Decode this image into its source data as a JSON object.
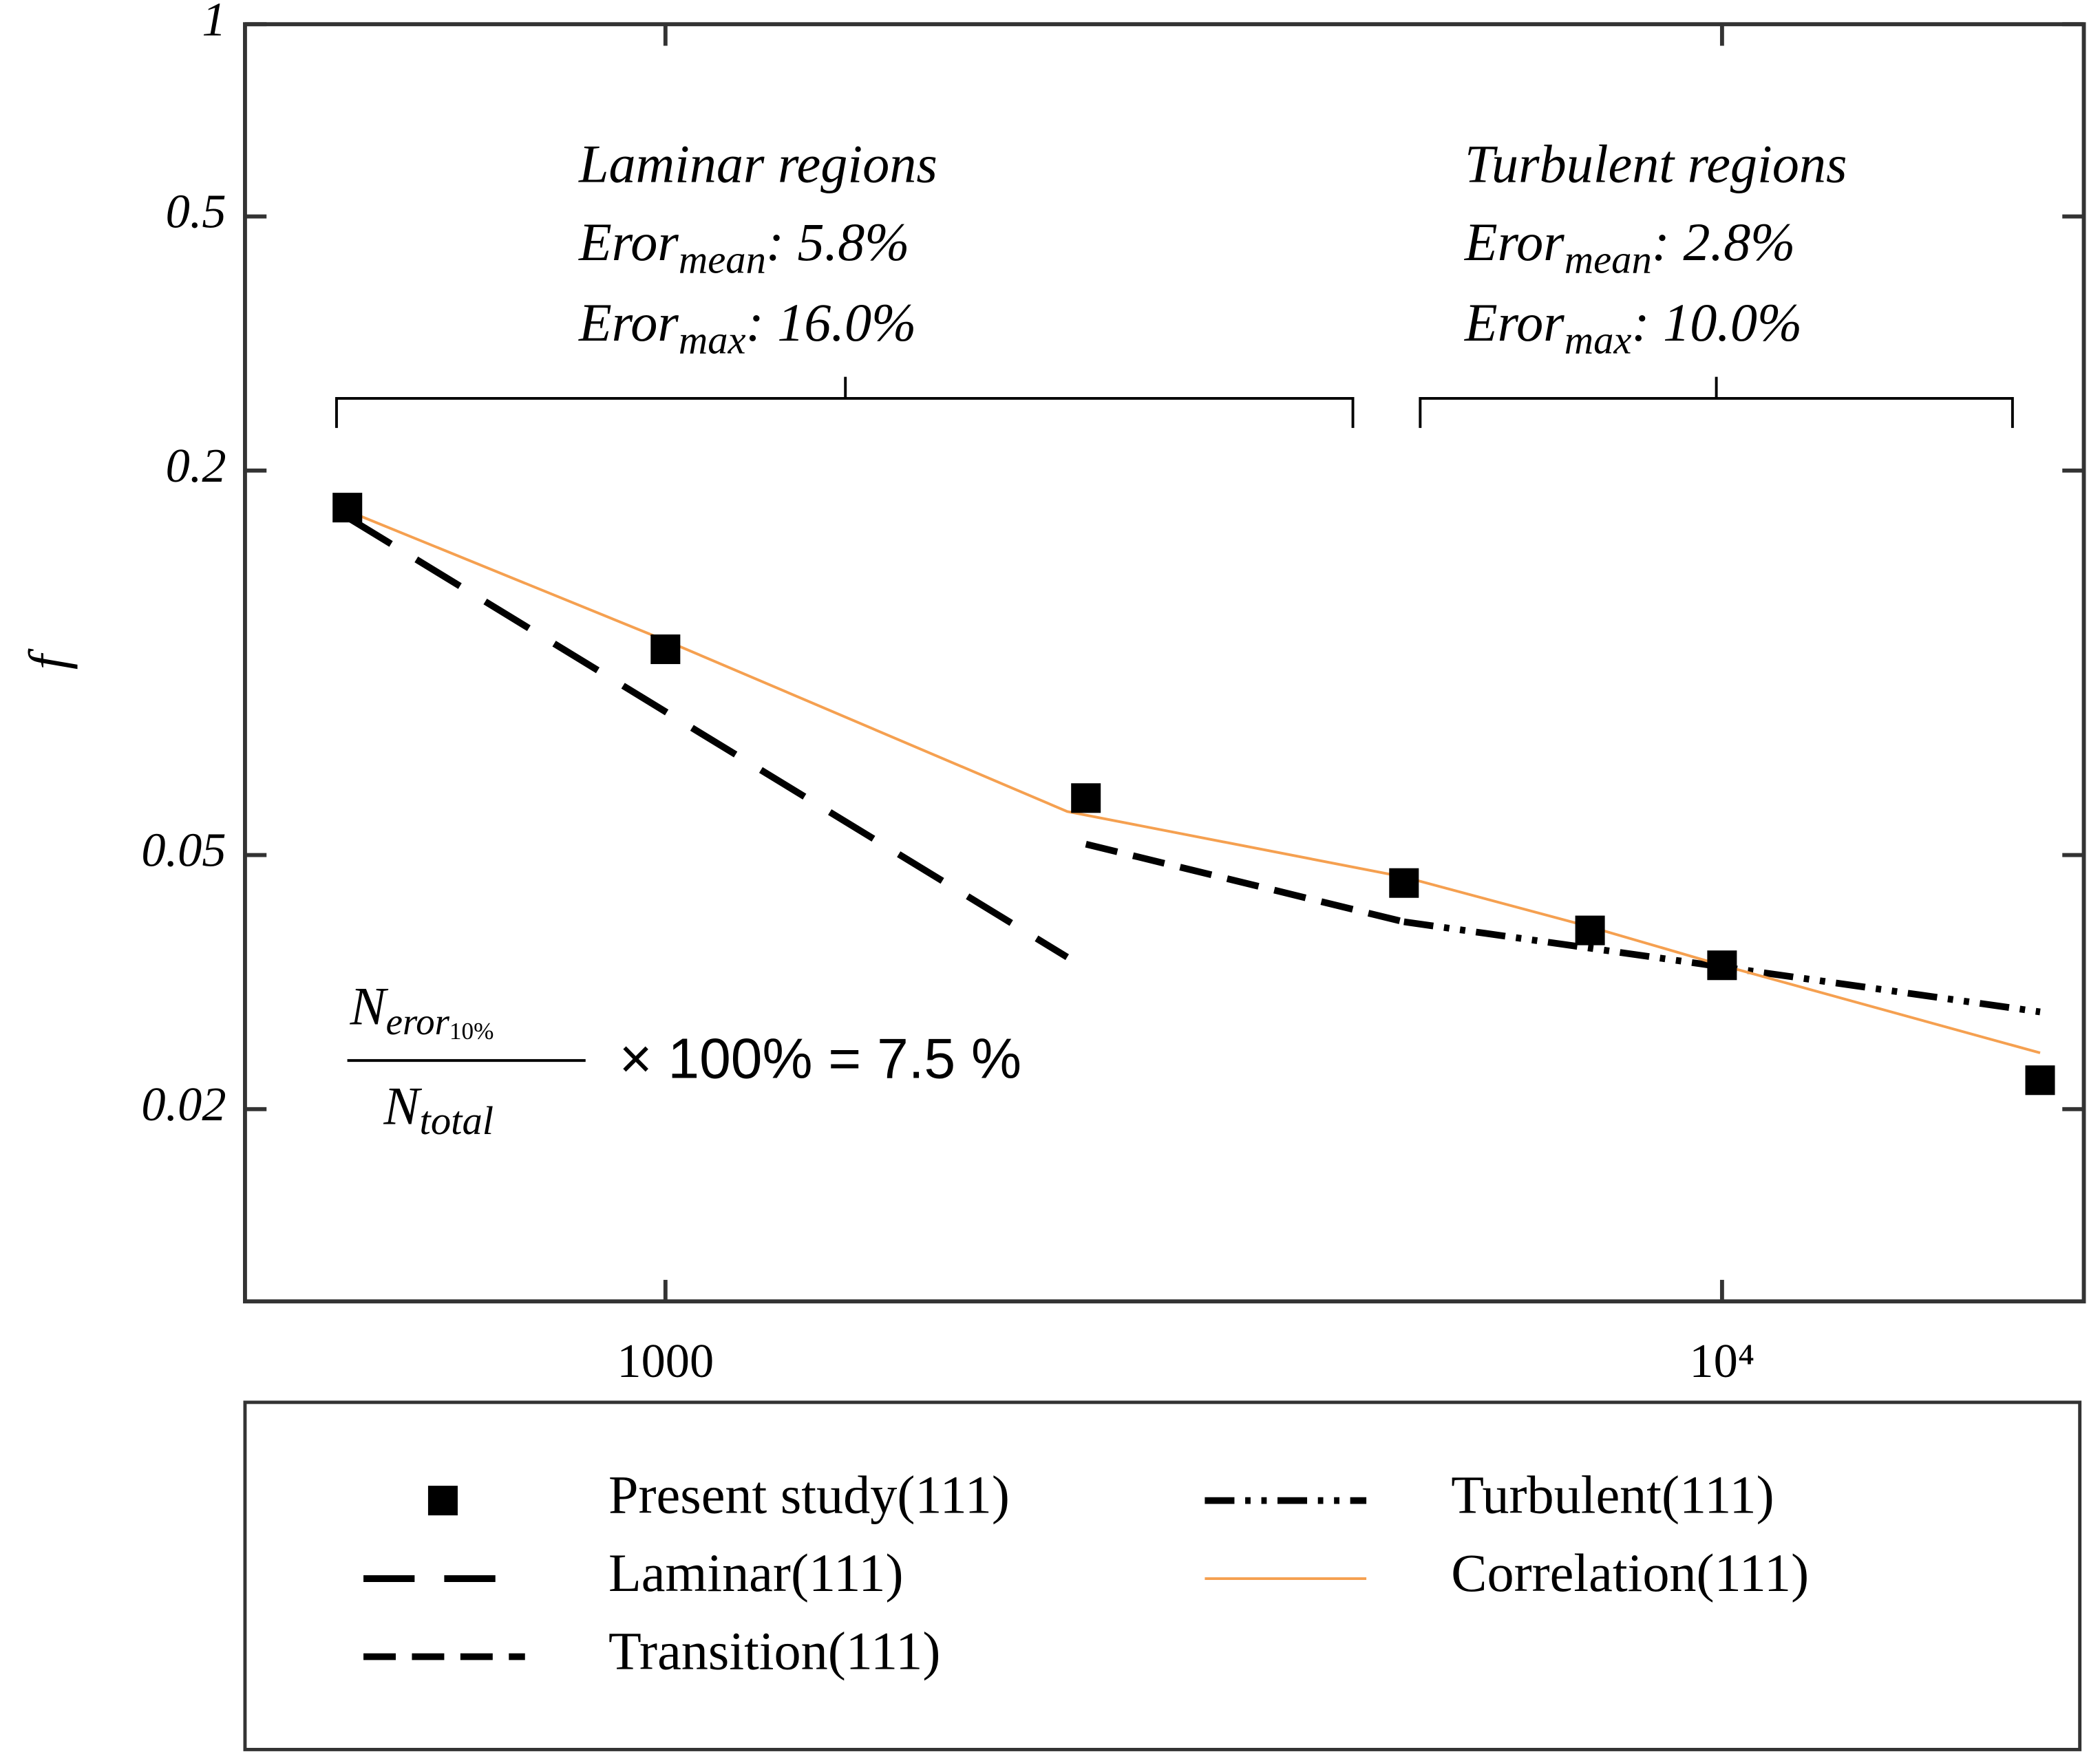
{
  "chart_data": {
    "type": "line",
    "x_scale": "log",
    "y_scale": "log",
    "y_label": "f",
    "xlim": [
      400,
      22000
    ],
    "ylim": [
      0.01,
      1
    ],
    "xticks": [
      1000,
      {
        "value": 10000,
        "label": "10⁴"
      }
    ],
    "yticks": [
      1,
      0.5,
      0.2,
      0.05,
      0.02
    ],
    "series": [
      {
        "name": "Present study(111)",
        "color": "#000000",
        "line_style": "marker",
        "x": [
          500,
          1000,
          2500,
          5000,
          7500,
          10000,
          20000
        ],
        "values": [
          0.175,
          0.105,
          0.0614,
          0.0452,
          0.0381,
          0.0336,
          0.0222
        ]
      },
      {
        "name": "Laminar(111)",
        "color": "#000000",
        "line_style": "long-dash",
        "x": [
          500,
          2400
        ],
        "values": [
          0.169,
          0.0346
        ]
      },
      {
        "name": "Transition(111)",
        "color": "#000000",
        "line_style": "dash",
        "x": [
          2500,
          5000
        ],
        "values": [
          0.052,
          0.0393
        ]
      },
      {
        "name": "Turbulent(111)",
        "color": "#000000",
        "line_style": "dash-dot-dot",
        "x": [
          5000,
          20000
        ],
        "values": [
          0.0393,
          0.0284
        ]
      },
      {
        "name": "Correlation(111)",
        "color": "#f5a050",
        "line_style": "solid",
        "x": [
          500,
          1000,
          2400,
          5000,
          7500,
          10000,
          20000
        ],
        "values": [
          0.173,
          0.1084,
          0.0585,
          0.0462,
          0.0386,
          0.0336,
          0.0245
        ]
      }
    ],
    "annotations": {
      "laminar": {
        "title": "Laminar regions",
        "mean": {
          "main": "Eror",
          "sub": "mean",
          "rest": ": 5.8%"
        },
        "max": {
          "main": "Eror",
          "sub": "max",
          "rest": ": 16.0%"
        }
      },
      "turbulent": {
        "title": "Turbulent regions",
        "mean": {
          "main": "Eror",
          "sub": "mean",
          "rest": ": 2.8%"
        },
        "max": {
          "main": "Eror",
          "sub": "max",
          "rest": ": 10.0%"
        }
      },
      "formula": {
        "num": "N",
        "num_sub": "eror",
        "num_subsub": "10%",
        "den": "N",
        "den_sub": "total",
        "rest": "× 100% = 7.5 %"
      }
    }
  }
}
